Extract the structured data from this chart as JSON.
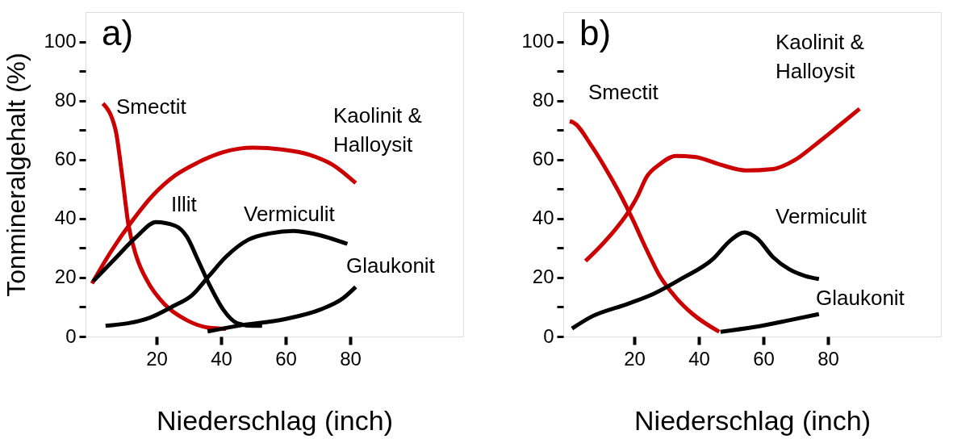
{
  "chart_data": [
    {
      "type": "line",
      "title": "a)",
      "xlabel": "Niederschlag (inch)",
      "ylabel": "Tonmineralgehalt (%)",
      "xlim": [
        -2,
        115
      ],
      "ylim": [
        0,
        110
      ],
      "xticks": [
        20,
        40,
        60,
        80
      ],
      "yticks": [
        0,
        {
          "value": 10,
          "label": null
        },
        20,
        {
          "value": 30,
          "label": null
        },
        40,
        {
          "value": 50,
          "label": null
        },
        60,
        {
          "value": 70,
          "label": null
        },
        80,
        {
          "value": 90,
          "label": null
        },
        100
      ],
      "grid": false,
      "marker": "none",
      "line_style": "solid",
      "series": [
        {
          "name": "Smectit",
          "color": "#cc0000",
          "x": [
            3.4,
            7.3,
            9.4,
            11.2,
            13.8,
            17.2,
            22.4,
            29.4,
            36,
            41.5
          ],
          "values": [
            79,
            70,
            54,
            38.5,
            27,
            18.7,
            11,
            5.5,
            3,
            2.6
          ]
        },
        {
          "name": "Kaolinit & Halloysit",
          "color": "#cc0000",
          "x": [
            0,
            6,
            12,
            19,
            25.9,
            32.8,
            40.6,
            50,
            58.8,
            67.4,
            74.4,
            81.7
          ],
          "values": [
            18,
            29,
            38.5,
            48,
            54.7,
            59,
            62.5,
            64,
            63.4,
            61.6,
            58.3,
            52
          ]
        },
        {
          "name": "Illit",
          "color": "#000000",
          "x": [
            0.3,
            6.8,
            13.8,
            19.8,
            25.9,
            29.4,
            32.8,
            36.3,
            40.6,
            45,
            50,
            52.7
          ],
          "values": [
            18.7,
            26,
            33.8,
            38.8,
            37.5,
            33.8,
            26,
            17.7,
            9.2,
            4.5,
            3.6,
            3.6
          ]
        },
        {
          "name": "Vermiculit",
          "color": "#000000",
          "x": [
            4.2,
            18,
            25,
            31,
            36.3,
            41.5,
            48.4,
            55.3,
            62.3,
            69.2,
            79.1
          ],
          "values": [
            3.6,
            6.4,
            10.2,
            14,
            20.6,
            27,
            32.8,
            35,
            35.8,
            34.7,
            31.4
          ]
        },
        {
          "name": "Glaukonit",
          "color": "#000000",
          "x": [
            35.8,
            45,
            59.7,
            70.9,
            77.8,
            81.7
          ],
          "values": [
            1.7,
            3.6,
            5.9,
            9.2,
            13,
            16.8
          ]
        }
      ]
    },
    {
      "type": "line",
      "title": "b)",
      "xlabel": "Niederschlag (inch)",
      "xlim": [
        -2,
        115
      ],
      "ylim": [
        0,
        110
      ],
      "xticks": [
        20,
        40,
        60,
        80
      ],
      "yticks": [
        0,
        {
          "value": 10,
          "label": null
        },
        20,
        {
          "value": 30,
          "label": null
        },
        40,
        {
          "value": 50,
          "label": null
        },
        60,
        {
          "value": 70,
          "label": null
        },
        80,
        {
          "value": 90,
          "label": null
        },
        100
      ],
      "grid": false,
      "marker": "none",
      "line_style": "solid",
      "series": [
        {
          "name": "Smectit",
          "color": "#cc0000",
          "x": [
            0,
            1.1,
            6.9,
            11.1,
            16.2,
            19.5,
            23.7,
            27.9,
            32.9,
            37.9,
            46.3
          ],
          "values": [
            73,
            72.6,
            64.4,
            57,
            47,
            39.7,
            29.7,
            20.5,
            13.2,
            7.8,
            1.6
          ]
        },
        {
          "name": "Kaolinit & Halloysit",
          "color": "#cc0000",
          "x": [
            4.9,
            9.5,
            13.6,
            17.8,
            21.2,
            23.7,
            27.9,
            32.9,
            38.7,
            46.3,
            54.6,
            63,
            69.7,
            76.4,
            83.1,
            89.8
          ],
          "values": [
            25.6,
            30.6,
            35.6,
            41.6,
            48,
            53.9,
            58.4,
            61.2,
            60.9,
            58.4,
            56.3,
            56.8,
            59.8,
            65.3,
            71.2,
            77.2
          ]
        },
        {
          "name": "Vermiculit",
          "color": "#000000",
          "x": [
            0.7,
            6.9,
            17.8,
            26.2,
            34.6,
            44.6,
            49.6,
            54.2,
            58,
            63,
            68,
            73,
            77.2
          ],
          "values": [
            2.7,
            6.8,
            11,
            14.6,
            19.6,
            26.5,
            32.4,
            35.3,
            33.3,
            26.9,
            22.8,
            20.5,
            19.5
          ]
        },
        {
          "name": "Glaukonit",
          "color": "#000000",
          "x": [
            46.7,
            57.2,
            68,
            77.2
          ],
          "values": [
            1.6,
            3.2,
            5.5,
            7.6
          ]
        }
      ]
    }
  ]
}
